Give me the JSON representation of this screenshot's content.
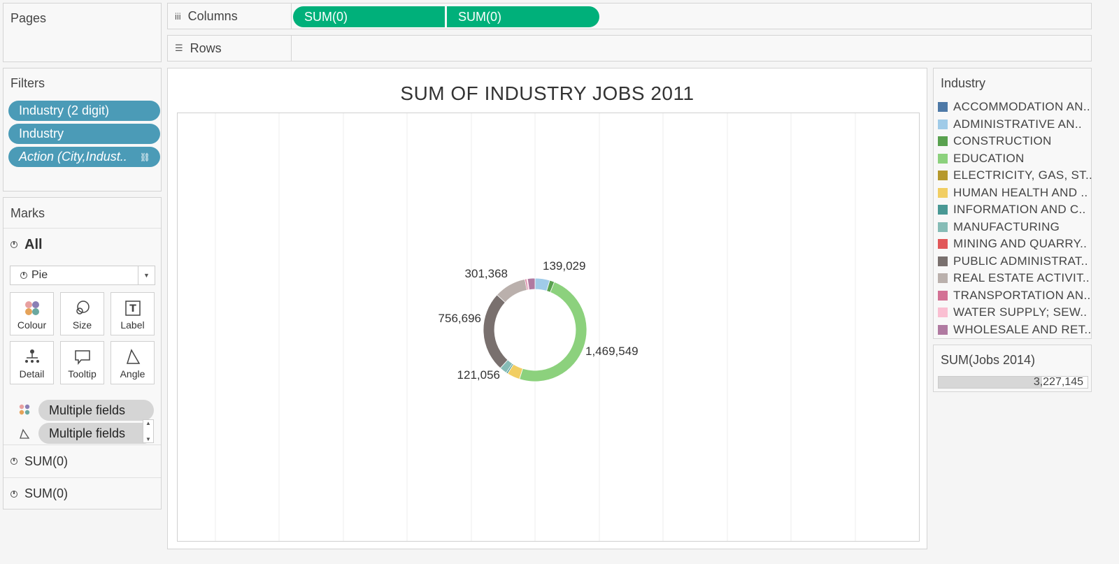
{
  "pages_panel": {
    "title": "Pages"
  },
  "columns_shelf": {
    "label": "Columns",
    "pills": [
      "SUM(0)",
      "SUM(0)"
    ]
  },
  "rows_shelf": {
    "label": "Rows"
  },
  "filters_panel": {
    "title": "Filters",
    "items": [
      "Industry (2 digit)",
      "Industry",
      "Action (City,Indust.."
    ]
  },
  "marks_panel": {
    "title": "Marks",
    "all_label": "All",
    "mark_type": "Pie",
    "buttons": [
      "Colour",
      "Size",
      "Label",
      "Detail",
      "Tooltip",
      "Angle"
    ],
    "fields": [
      "Multiple fields",
      "Multiple fields"
    ],
    "sub_cards": [
      "SUM(0)",
      "SUM(0)"
    ]
  },
  "chart": {
    "title": "SUM OF INDUSTRY JOBS 2011"
  },
  "chart_data": {
    "type": "pie",
    "title": "SUM OF INDUSTRY JOBS 2011",
    "slices": [
      {
        "label": "ADMINISTRATIVE AN..",
        "value": 139029,
        "color": "#a0cbe8"
      },
      {
        "label": "CONSTRUCTION",
        "value": 45000,
        "color": "#59a14f"
      },
      {
        "label": "EDUCATION",
        "value": 1469549,
        "color": "#8cd17d"
      },
      {
        "label": "HUMAN HEALTH AND ..",
        "value": 121056,
        "color": "#f1ce63"
      },
      {
        "label": "INFORMATION AND C..",
        "value": 15000,
        "color": "#499894"
      },
      {
        "label": "MANUFACTURING",
        "value": 70000,
        "color": "#86bcb6"
      },
      {
        "label": "PUBLIC ADMINISTRAT..",
        "value": 756696,
        "color": "#79706e"
      },
      {
        "label": "REAL ESTATE ACTIVIT..",
        "value": 301368,
        "color": "#bab0ac"
      },
      {
        "label": "TRANSPORTATION AN..",
        "value": 15000,
        "color": "#d37295"
      },
      {
        "label": "WATER SUPPLY; SEW..",
        "value": 10000,
        "color": "#fabfd2"
      },
      {
        "label": "WHOLESALE AND RET..",
        "value": 70000,
        "color": "#b07aa1"
      }
    ],
    "data_labels": [
      "139,029",
      "1,469,549",
      "121,056",
      "756,696",
      "301,368"
    ]
  },
  "legend": {
    "title": "Industry",
    "items": [
      {
        "label": "ACCOMMODATION AN..",
        "color": "#4e79a7"
      },
      {
        "label": "ADMINISTRATIVE AN..",
        "color": "#a0cbe8"
      },
      {
        "label": "CONSTRUCTION",
        "color": "#59a14f"
      },
      {
        "label": "EDUCATION",
        "color": "#8cd17d"
      },
      {
        "label": "ELECTRICITY, GAS, ST..",
        "color": "#b6992d"
      },
      {
        "label": "HUMAN HEALTH AND ..",
        "color": "#f1ce63"
      },
      {
        "label": "INFORMATION AND C..",
        "color": "#499894"
      },
      {
        "label": "MANUFACTURING",
        "color": "#86bcb6"
      },
      {
        "label": "MINING AND QUARRY..",
        "color": "#e15759"
      },
      {
        "label": "PUBLIC ADMINISTRAT..",
        "color": "#79706e"
      },
      {
        "label": "REAL ESTATE ACTIVIT..",
        "color": "#bab0ac"
      },
      {
        "label": "TRANSPORTATION AN..",
        "color": "#d37295"
      },
      {
        "label": "WATER SUPPLY; SEW..",
        "color": "#fabfd2"
      },
      {
        "label": "WHOLESALE AND RET..",
        "color": "#b07aa1"
      }
    ]
  },
  "size_legend": {
    "title": "SUM(Jobs 2014)",
    "value": "3,227,145"
  }
}
